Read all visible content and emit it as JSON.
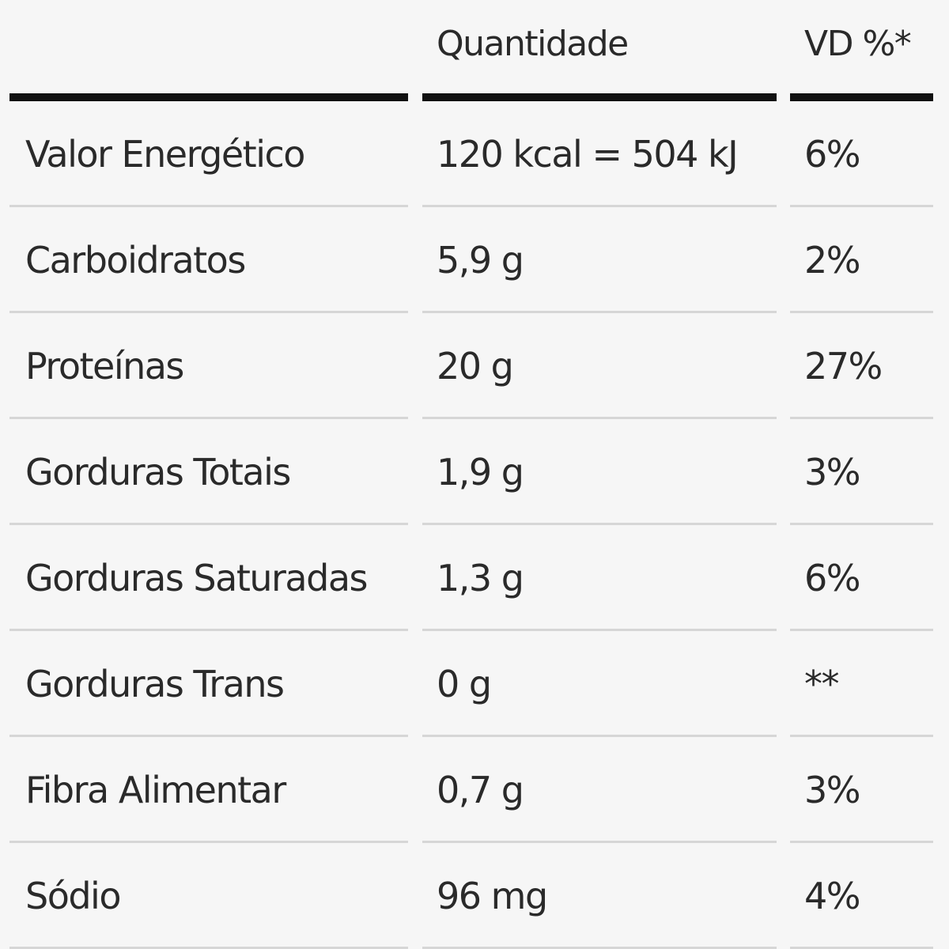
{
  "table": {
    "header": [
      "",
      "Quantidade",
      "VD %*"
    ],
    "rows": [
      [
        "Valor Energético",
        "120 kcal = 504 kJ",
        "6%"
      ],
      [
        "Carboidratos",
        "5,9 g",
        "2%"
      ],
      [
        "Proteínas",
        "20 g",
        "27%"
      ],
      [
        "Gorduras Totais",
        "1,9 g",
        "3%"
      ],
      [
        "Gorduras Saturadas",
        "1,3 g",
        "6%"
      ],
      [
        "Gorduras Trans",
        "0 g",
        "**"
      ],
      [
        "Fibra Alimentar",
        "0,7 g",
        "3%"
      ],
      [
        "Sódio",
        "96 mg",
        "4%"
      ]
    ]
  }
}
